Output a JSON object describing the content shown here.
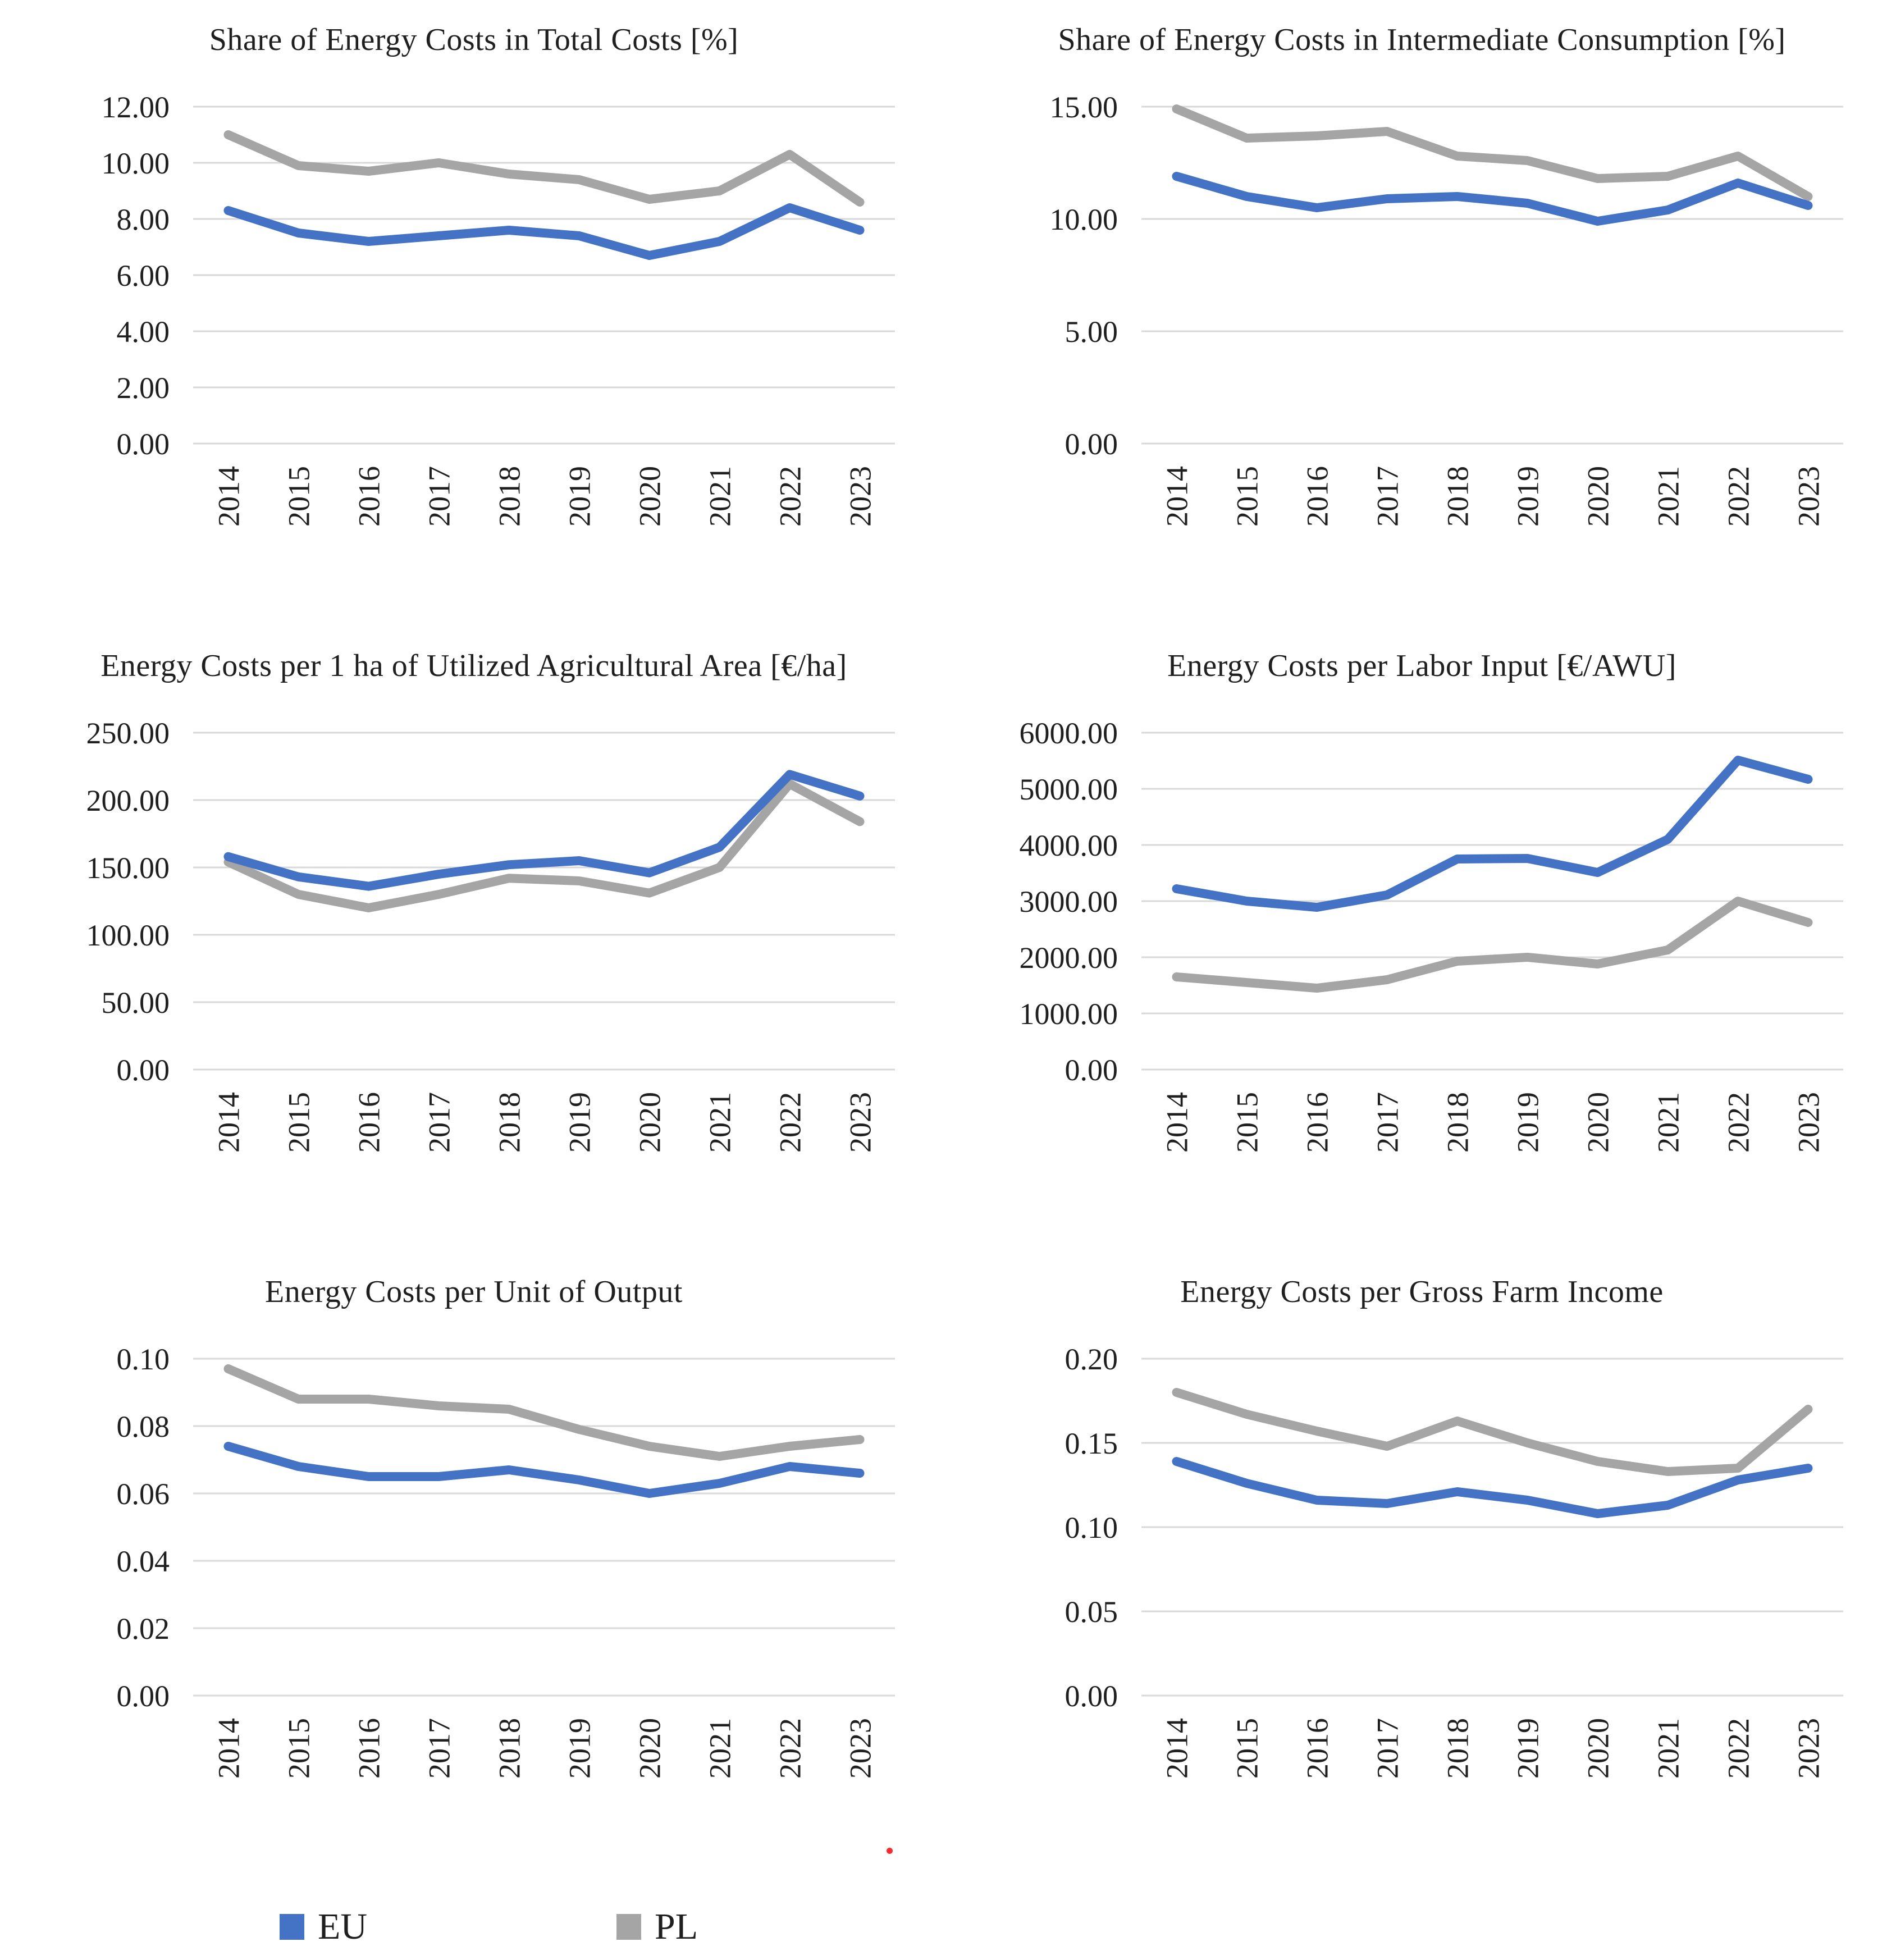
{
  "page": {
    "background": "#ffffff"
  },
  "colors": {
    "eu_line": "#4472C4",
    "pl_line": "#A5A5A5",
    "gridline": "#D9D9D9",
    "text": "#1f1f1f"
  },
  "legend": {
    "position": "bottom-left",
    "items": [
      {
        "label": "EU",
        "color": "#4472C4"
      },
      {
        "label": "PL",
        "color": "#A5A5A5"
      }
    ]
  },
  "artifacts": {
    "stray_red_dot_color": "#ff2b2b"
  },
  "chart_data": [
    {
      "type": "line",
      "title": "Share of Energy Costs in Total Costs [%]",
      "categories": [
        "2014",
        "2015",
        "2016",
        "2017",
        "2018",
        "2019",
        "2020",
        "2021",
        "2022",
        "2023"
      ],
      "series": [
        {
          "name": "EU",
          "color": "#4472C4",
          "values": [
            8.3,
            7.5,
            7.2,
            7.4,
            7.6,
            7.4,
            6.7,
            7.2,
            8.4,
            7.6
          ]
        },
        {
          "name": "PL",
          "color": "#A5A5A5",
          "values": [
            11.0,
            9.9,
            9.7,
            10.0,
            9.6,
            9.4,
            8.7,
            9.0,
            10.3,
            8.6
          ]
        }
      ],
      "ylim": [
        0,
        12
      ],
      "ystep": 2,
      "ytick_format": "0.00",
      "grid": true,
      "legend_position": "shared-bottom"
    },
    {
      "type": "line",
      "title": "Share of Energy Costs in Intermediate Consumption [%]",
      "categories": [
        "2014",
        "2015",
        "2016",
        "2017",
        "2018",
        "2019",
        "2020",
        "2021",
        "2022",
        "2023"
      ],
      "series": [
        {
          "name": "EU",
          "color": "#4472C4",
          "values": [
            11.9,
            11.0,
            10.5,
            10.9,
            11.0,
            10.7,
            9.9,
            10.4,
            11.6,
            10.6
          ]
        },
        {
          "name": "PL",
          "color": "#A5A5A5",
          "values": [
            14.9,
            13.6,
            13.7,
            13.9,
            12.8,
            12.6,
            11.8,
            11.9,
            12.8,
            11.0
          ]
        }
      ],
      "ylim": [
        0,
        15
      ],
      "ystep": 5,
      "ytick_format": "0.00",
      "grid": true,
      "legend_position": "shared-bottom"
    },
    {
      "type": "line",
      "title": "Energy Costs per 1 ha of Utilized Agricultural Area [€/ha]",
      "categories": [
        "2014",
        "2015",
        "2016",
        "2017",
        "2018",
        "2019",
        "2020",
        "2021",
        "2022",
        "2023"
      ],
      "series": [
        {
          "name": "EU",
          "color": "#4472C4",
          "values": [
            158,
            143,
            136,
            145,
            152,
            155,
            146,
            165,
            219,
            203
          ]
        },
        {
          "name": "PL",
          "color": "#A5A5A5",
          "values": [
            154,
            130,
            120,
            130,
            142,
            140,
            131,
            150,
            212,
            184
          ]
        }
      ],
      "ylim": [
        0,
        250
      ],
      "ystep": 50,
      "ytick_format": "0.00",
      "grid": true,
      "legend_position": "shared-bottom"
    },
    {
      "type": "line",
      "title": "Energy Costs per Labor Input [€/AWU]",
      "categories": [
        "2014",
        "2015",
        "2016",
        "2017",
        "2018",
        "2019",
        "2020",
        "2021",
        "2022",
        "2023"
      ],
      "series": [
        {
          "name": "EU",
          "color": "#4472C4",
          "values": [
            3220,
            3000,
            2890,
            3110,
            3750,
            3760,
            3510,
            4100,
            5510,
            5170
          ]
        },
        {
          "name": "PL",
          "color": "#A5A5A5",
          "values": [
            1650,
            1550,
            1450,
            1600,
            1930,
            2000,
            1880,
            2130,
            3000,
            2620
          ]
        }
      ],
      "ylim": [
        0,
        6000
      ],
      "ystep": 1000,
      "ytick_format": "0.00",
      "grid": true,
      "legend_position": "shared-bottom"
    },
    {
      "type": "line",
      "title": "Energy Costs per Unit of Output",
      "categories": [
        "2014",
        "2015",
        "2016",
        "2017",
        "2018",
        "2019",
        "2020",
        "2021",
        "2022",
        "2023"
      ],
      "series": [
        {
          "name": "EU",
          "color": "#4472C4",
          "values": [
            0.074,
            0.068,
            0.065,
            0.065,
            0.067,
            0.064,
            0.06,
            0.063,
            0.068,
            0.066
          ]
        },
        {
          "name": "PL",
          "color": "#A5A5A5",
          "values": [
            0.097,
            0.088,
            0.088,
            0.086,
            0.085,
            0.079,
            0.074,
            0.071,
            0.074,
            0.076
          ]
        }
      ],
      "ylim": [
        0,
        0.1
      ],
      "ystep": 0.02,
      "ytick_format": "0.00",
      "grid": true,
      "legend_position": "shared-bottom"
    },
    {
      "type": "line",
      "title": "Energy Costs per Gross Farm Income",
      "categories": [
        "2014",
        "2015",
        "2016",
        "2017",
        "2018",
        "2019",
        "2020",
        "2021",
        "2022",
        "2023"
      ],
      "series": [
        {
          "name": "EU",
          "color": "#4472C4",
          "values": [
            0.139,
            0.126,
            0.116,
            0.114,
            0.121,
            0.116,
            0.108,
            0.113,
            0.128,
            0.135
          ]
        },
        {
          "name": "PL",
          "color": "#A5A5A5",
          "values": [
            0.18,
            0.167,
            0.157,
            0.148,
            0.163,
            0.15,
            0.139,
            0.133,
            0.135,
            0.17
          ]
        }
      ],
      "ylim": [
        0,
        0.2
      ],
      "ystep": 0.05,
      "ytick_format": "0.00",
      "grid": true,
      "legend_position": "shared-bottom"
    }
  ]
}
